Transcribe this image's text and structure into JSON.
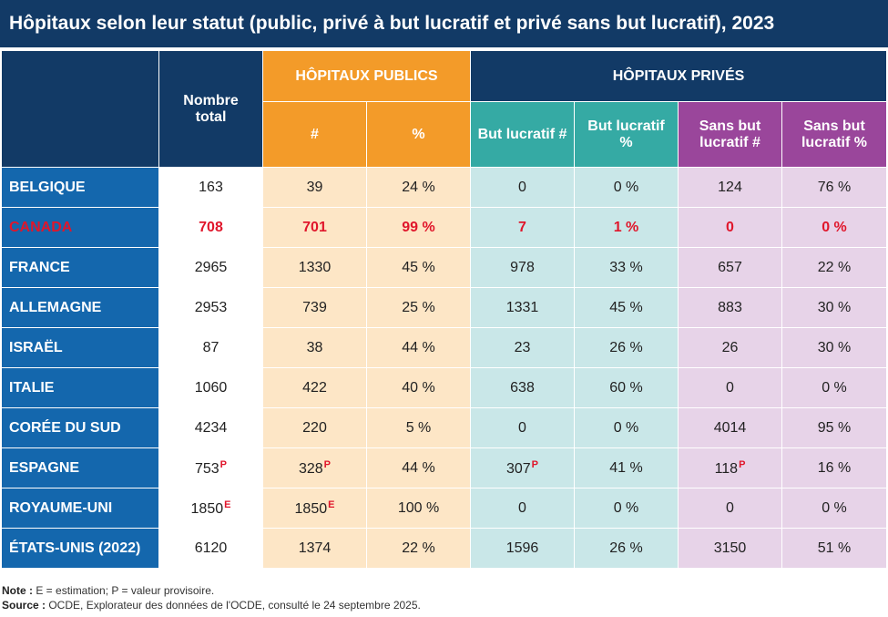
{
  "title": "Hôpitaux selon leur statut (public, privé à but lucratif et privé sans but lucratif), 2023",
  "headers": {
    "total": "Nombre total",
    "public_group": "HÔPITAUX PUBLICS",
    "private_group": "HÔPITAUX PRIVÉS",
    "public_count": "#",
    "public_pct": "%",
    "profit_count": "But lucratif #",
    "profit_pct": "But lucratif %",
    "nonprofit_count": "Sans but lucratif #",
    "nonprofit_pct": "Sans but lucratif %"
  },
  "rows": [
    {
      "country": "BELGIQUE",
      "total": "163",
      "total_flag": "",
      "pub": "39",
      "pub_flag": "",
      "pub_pct": "24 %",
      "profit": "0",
      "profit_flag": "",
      "profit_pct": "0 %",
      "nonprofit": "124",
      "nonprofit_flag": "",
      "nonprofit_pct": "76 %"
    },
    {
      "country": "CANADA",
      "total": "708",
      "total_flag": "",
      "pub": "701",
      "pub_flag": "",
      "pub_pct": "99 %",
      "profit": "7",
      "profit_flag": "",
      "profit_pct": "1 %",
      "nonprofit": "0",
      "nonprofit_flag": "",
      "nonprofit_pct": "0 %"
    },
    {
      "country": "FRANCE",
      "total": "2965",
      "total_flag": "",
      "pub": "1330",
      "pub_flag": "",
      "pub_pct": "45 %",
      "profit": "978",
      "profit_flag": "",
      "profit_pct": "33 %",
      "nonprofit": "657",
      "nonprofit_flag": "",
      "nonprofit_pct": "22 %"
    },
    {
      "country": "ALLEMAGNE",
      "total": "2953",
      "total_flag": "",
      "pub": "739",
      "pub_flag": "",
      "pub_pct": "25 %",
      "profit": "1331",
      "profit_flag": "",
      "profit_pct": "45 %",
      "nonprofit": "883",
      "nonprofit_flag": "",
      "nonprofit_pct": "30 %"
    },
    {
      "country": "ISRAËL",
      "total": "87",
      "total_flag": "",
      "pub": "38",
      "pub_flag": "",
      "pub_pct": "44 %",
      "profit": "23",
      "profit_flag": "",
      "profit_pct": "26 %",
      "nonprofit": "26",
      "nonprofit_flag": "",
      "nonprofit_pct": "30 %"
    },
    {
      "country": "ITALIE",
      "total": "1060",
      "total_flag": "",
      "pub": "422",
      "pub_flag": "",
      "pub_pct": "40 %",
      "profit": "638",
      "profit_flag": "",
      "profit_pct": "60 %",
      "nonprofit": "0",
      "nonprofit_flag": "",
      "nonprofit_pct": "0 %"
    },
    {
      "country": "CORÉE DU SUD",
      "total": "4234",
      "total_flag": "",
      "pub": "220",
      "pub_flag": "",
      "pub_pct": "5 %",
      "profit": "0",
      "profit_flag": "",
      "profit_pct": "0 %",
      "nonprofit": "4014",
      "nonprofit_flag": "",
      "nonprofit_pct": "95 %"
    },
    {
      "country": "ESPAGNE",
      "total": "753",
      "total_flag": "P",
      "pub": "328",
      "pub_flag": "P",
      "pub_pct": "44 %",
      "profit": "307",
      "profit_flag": "P",
      "profit_pct": "41 %",
      "nonprofit": "118",
      "nonprofit_flag": "P",
      "nonprofit_pct": "16 %"
    },
    {
      "country": "ROYAUME-UNI",
      "total": "1850",
      "total_flag": "E",
      "pub": "1850",
      "pub_flag": "E",
      "pub_pct": "100 %",
      "profit": "0",
      "profit_flag": "",
      "profit_pct": "0 %",
      "nonprofit": "0",
      "nonprofit_flag": "",
      "nonprofit_pct": "0 %"
    },
    {
      "country": "ÉTATS-UNIS (2022)",
      "total": "6120",
      "total_flag": "",
      "pub": "1374",
      "pub_flag": "",
      "pub_pct": "22 %",
      "profit": "1596",
      "profit_flag": "",
      "profit_pct": "26 %",
      "nonprofit": "3150",
      "nonprofit_flag": "",
      "nonprofit_pct": "51 %"
    }
  ],
  "highlight_country": "CANADA",
  "colors": {
    "navy": "#123a66",
    "orange": "#f39b29",
    "teal": "#35aaa4",
    "purple": "#9a469b",
    "highlight": "#e0162b"
  },
  "footer": {
    "note_label": "Note :",
    "note_text": " E = estimation; P = valeur provisoire.",
    "source_label": "Source :",
    "source_text": " OCDE, Explorateur des données de l'OCDE, consulté le 24 septembre 2025."
  }
}
